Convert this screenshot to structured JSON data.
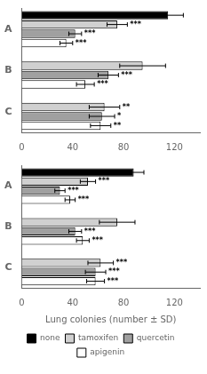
{
  "chart_data": [
    {
      "type": "bar",
      "orientation": "horizontal",
      "categories": [
        "A",
        "B",
        "C"
      ],
      "series": [
        {
          "name": "none",
          "color": "#000000",
          "values": [
            115,
            null,
            null
          ],
          "errors": [
            12,
            null,
            null
          ],
          "significance": [
            null,
            null,
            null
          ]
        },
        {
          "name": "tamoxifen",
          "color": "#d0d0d0",
          "values": [
            75,
            95,
            65
          ],
          "errors": [
            8,
            18,
            12
          ],
          "significance": [
            "***",
            null,
            "**"
          ]
        },
        {
          "name": "quercetin",
          "color": "#a0a0a0",
          "values": [
            42,
            68,
            63
          ],
          "errors": [
            5,
            8,
            10
          ],
          "significance": [
            "***",
            "***",
            "*"
          ]
        },
        {
          "name": "apigenin",
          "color": "#ffffff",
          "values": [
            35,
            50,
            62
          ],
          "errors": [
            5,
            7,
            8
          ],
          "significance": [
            "***",
            "***",
            "**"
          ]
        }
      ],
      "xlim": [
        0,
        140
      ],
      "xticks": [
        0,
        40,
        80,
        120
      ],
      "grid": false
    },
    {
      "type": "bar",
      "orientation": "horizontal",
      "xlabel": "Lung colonies (number ± SD)",
      "categories": [
        "A",
        "B",
        "C"
      ],
      "series": [
        {
          "name": "none",
          "color": "#000000",
          "values": [
            88,
            null,
            null
          ],
          "errors": [
            8,
            null,
            null
          ],
          "significance": [
            null,
            null,
            null
          ]
        },
        {
          "name": "tamoxifen",
          "color": "#d0d0d0",
          "values": [
            52,
            75,
            62
          ],
          "errors": [
            6,
            14,
            10
          ],
          "significance": [
            "***",
            null,
            "***"
          ]
        },
        {
          "name": "quercetin",
          "color": "#a0a0a0",
          "values": [
            30,
            42,
            58
          ],
          "errors": [
            4,
            5,
            8
          ],
          "significance": [
            "***",
            "***",
            "***"
          ]
        },
        {
          "name": "apigenin",
          "color": "#ffffff",
          "values": [
            38,
            48,
            58
          ],
          "errors": [
            4,
            5,
            7
          ],
          "significance": [
            "***",
            "***",
            "***"
          ]
        }
      ],
      "xlim": [
        0,
        140
      ],
      "xticks": [
        0,
        40,
        80,
        120
      ],
      "grid": false,
      "legend": "bottom"
    }
  ]
}
